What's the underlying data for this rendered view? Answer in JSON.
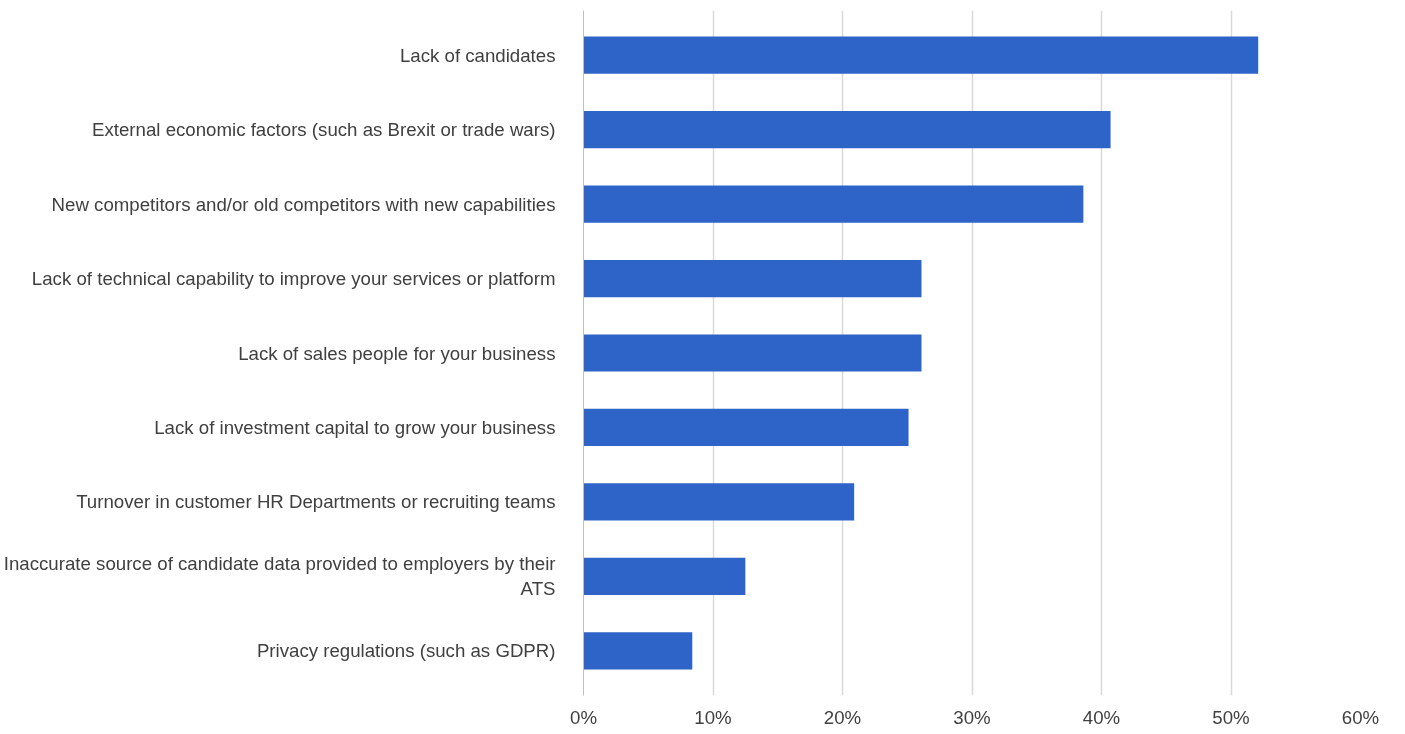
{
  "chart_data": {
    "type": "bar",
    "orientation": "horizontal",
    "categories": [
      "Lack of candidates",
      "External economic factors (such as Brexit or trade wars)",
      "New competitors and/or old competitors with new capabilities",
      "Lack of technical capability to improve your services or platform",
      "Lack of sales people for your business",
      "Lack of investment capital to grow your business",
      "Turnover in customer HR Departments or recruiting teams",
      "Inaccurate source of candidate data provided to employers by their ATS",
      "Privacy regulations (such as GDPR)"
    ],
    "values": [
      52.1,
      40.7,
      38.6,
      26.1,
      26.1,
      25.1,
      20.9,
      12.5,
      8.4
    ],
    "color": "#2e63c8",
    "xlim": [
      0,
      60
    ],
    "xticks": [
      {
        "value": 0,
        "label": "0%"
      },
      {
        "value": 10,
        "label": "10%"
      },
      {
        "value": 20,
        "label": "20%"
      },
      {
        "value": 30,
        "label": "30%"
      },
      {
        "value": 40,
        "label": "40%"
      },
      {
        "value": 50,
        "label": "50%"
      },
      {
        "value": 60,
        "label": "60%"
      }
    ],
    "grid": "x"
  }
}
